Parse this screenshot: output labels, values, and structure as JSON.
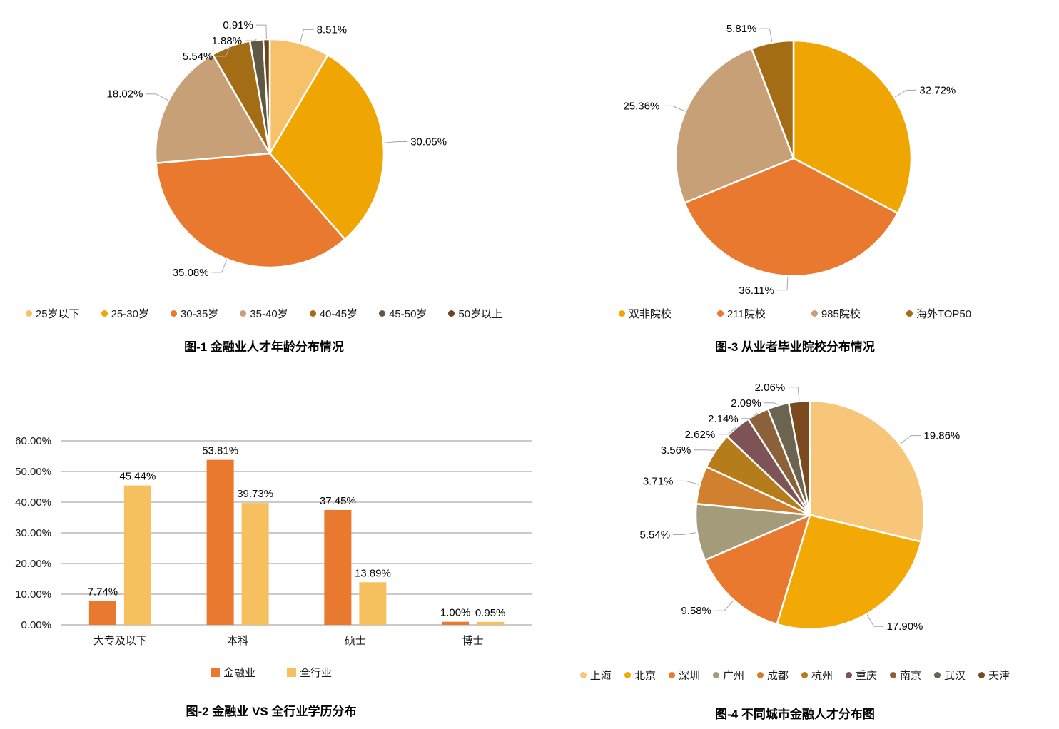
{
  "page": {
    "background": "#FFFFFF",
    "leader_line_color": "#A6A6A6",
    "gridline_color": "#ABABAB"
  },
  "chart_data": [
    {
      "id": "age-pie",
      "type": "pie",
      "title": "图-1 金融业人才年龄分布情况",
      "legend_position": "bottom",
      "label_format": "percent-2dp",
      "slices": [
        {
          "label": "25岁以下",
          "value": 8.51,
          "color": "#F6C169"
        },
        {
          "label": "25-30岁",
          "value": 30.05,
          "color": "#F0A602"
        },
        {
          "label": "30-35岁",
          "value": 35.08,
          "color": "#E8792E"
        },
        {
          "label": "35-40岁",
          "value": 18.02,
          "color": "#C8A077"
        },
        {
          "label": "40-45岁",
          "value": 5.54,
          "color": "#A46C15"
        },
        {
          "label": "45-50岁",
          "value": 1.88,
          "color": "#5F5844"
        },
        {
          "label": "50岁以上",
          "value": 0.91,
          "color": "#70421A"
        }
      ]
    },
    {
      "id": "education-bar",
      "type": "bar",
      "title": "图-2 金融业 VS 全行业学历分布",
      "legend_position": "bottom",
      "grid": true,
      "categories": [
        "大专及以下",
        "本科",
        "硕士",
        "博士"
      ],
      "series": [
        {
          "name": "金融业",
          "color": "#E8792E",
          "values": [
            7.74,
            53.81,
            37.45,
            1.0
          ]
        },
        {
          "name": "全行业",
          "color": "#F6C05F",
          "values": [
            45.44,
            39.73,
            13.89,
            0.95
          ]
        }
      ],
      "xlabel": "",
      "ylabel": "",
      "ylim": [
        0,
        60
      ],
      "ystep": 10,
      "ytick_labels": [
        "0.00%",
        "10.00%",
        "20.00%",
        "30.00%",
        "40.00%",
        "50.00%",
        "60.00%"
      ]
    },
    {
      "id": "school-pie",
      "type": "pie",
      "title": "图-3 从业者毕业院校分布情况",
      "legend_position": "bottom",
      "label_format": "percent-2dp",
      "slices": [
        {
          "label": "双非院校",
          "value": 32.72,
          "color": "#F0A602"
        },
        {
          "label": "211院校",
          "value": 36.11,
          "color": "#E8792E"
        },
        {
          "label": "985院校",
          "value": 25.36,
          "color": "#C8A077"
        },
        {
          "label": "海外TOP50",
          "value": 5.81,
          "color": "#A46C15"
        }
      ]
    },
    {
      "id": "city-pie",
      "type": "pie",
      "title": "图-4 不同城市金融人才分布图",
      "legend_position": "bottom",
      "label_format": "percent-2dp",
      "slices": [
        {
          "label": "上海",
          "value": 19.86,
          "color": "#F7C678"
        },
        {
          "label": "北京",
          "value": 17.9,
          "color": "#F2A905"
        },
        {
          "label": "深圳",
          "value": 9.58,
          "color": "#E8792E"
        },
        {
          "label": "广州",
          "value": 5.54,
          "color": "#A49B7B"
        },
        {
          "label": "成都",
          "value": 3.71,
          "color": "#D0802F"
        },
        {
          "label": "杭州",
          "value": 3.56,
          "color": "#B57C1B"
        },
        {
          "label": "重庆",
          "value": 2.62,
          "color": "#7D5355"
        },
        {
          "label": "南京",
          "value": 2.14,
          "color": "#8A6138"
        },
        {
          "label": "武汉",
          "value": 2.09,
          "color": "#6A6450"
        },
        {
          "label": "天津",
          "value": 2.06,
          "color": "#7B4A1E"
        }
      ]
    }
  ]
}
